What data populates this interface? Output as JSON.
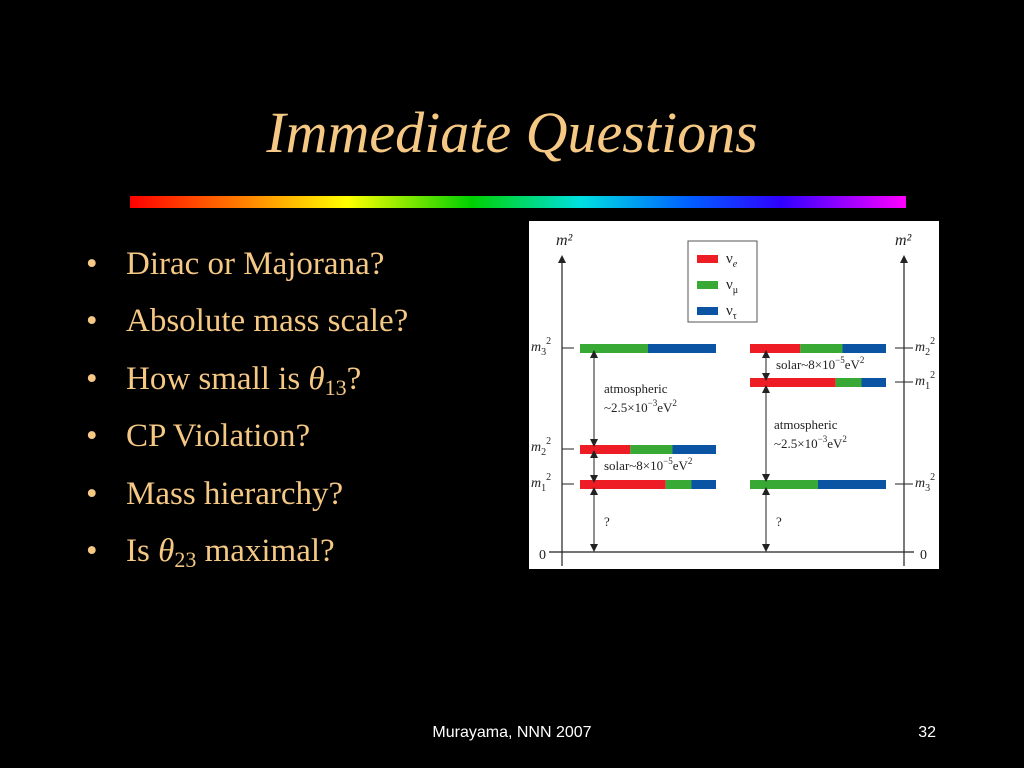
{
  "slide": {
    "title": "Immediate Questions",
    "bullets": [
      {
        "pre": "Dirac or Majorana?",
        "var": "",
        "sub": "",
        "post": ""
      },
      {
        "pre": "Absolute mass scale?",
        "var": "",
        "sub": "",
        "post": ""
      },
      {
        "pre": "How small is ",
        "var": "θ",
        "sub": "13",
        "post": "?"
      },
      {
        "pre": "CP Violation?",
        "var": "",
        "sub": "",
        "post": ""
      },
      {
        "pre": "Mass hierarchy?",
        "var": "",
        "sub": "",
        "post": ""
      },
      {
        "pre": "Is ",
        "var": "θ",
        "sub": "23",
        "post": " maximal?"
      }
    ],
    "bullet_char": "•",
    "footer_text": "Murayama, NNN 2007",
    "page_number": "32"
  },
  "diagram": {
    "axis_label": "m²",
    "zero_label": "0",
    "legend": [
      {
        "symbol": "ν",
        "sub": "e",
        "color": "#ee1c24"
      },
      {
        "symbol": "ν",
        "sub": "μ",
        "color": "#39a935"
      },
      {
        "symbol": "ν",
        "sub": "τ",
        "color": "#0a54a3"
      }
    ],
    "normal": {
      "levels": [
        {
          "label": "m",
          "sub": "3",
          "sup": "2",
          "fractions": [
            0,
            0.5,
            0.5
          ]
        },
        {
          "label": "m",
          "sub": "2",
          "sup": "2",
          "fractions": [
            0.37,
            0.31,
            0.32
          ]
        },
        {
          "label": "m",
          "sub": "1",
          "sup": "2",
          "fractions": [
            0.63,
            0.19,
            0.18
          ]
        }
      ],
      "atm_line1": "atmospheric",
      "atm_line2": "~2.5×10",
      "atm_exp": "−3",
      "atm_unit": "eV",
      "atm_unit_sup": "2",
      "solar_text": "solar~8×10",
      "solar_exp": "−5",
      "solar_unit": "eV",
      "solar_unit_sup": "2",
      "unknown": "?"
    },
    "inverted": {
      "levels": [
        {
          "label": "m",
          "sub": "2",
          "sup": "2",
          "fractions": [
            0.37,
            0.31,
            0.32
          ]
        },
        {
          "label": "m",
          "sub": "1",
          "sup": "2",
          "fractions": [
            0.63,
            0.19,
            0.18
          ]
        },
        {
          "label": "m",
          "sub": "3",
          "sup": "2",
          "fractions": [
            0,
            0.5,
            0.5
          ]
        }
      ],
      "atm_line1": "atmospheric",
      "atm_line2": "~2.5×10",
      "atm_exp": "−3",
      "atm_unit": "eV",
      "atm_unit_sup": "2",
      "solar_text": "solar~8×10",
      "solar_exp": "−5",
      "solar_unit": "eV",
      "solar_unit_sup": "2",
      "unknown": "?"
    }
  }
}
